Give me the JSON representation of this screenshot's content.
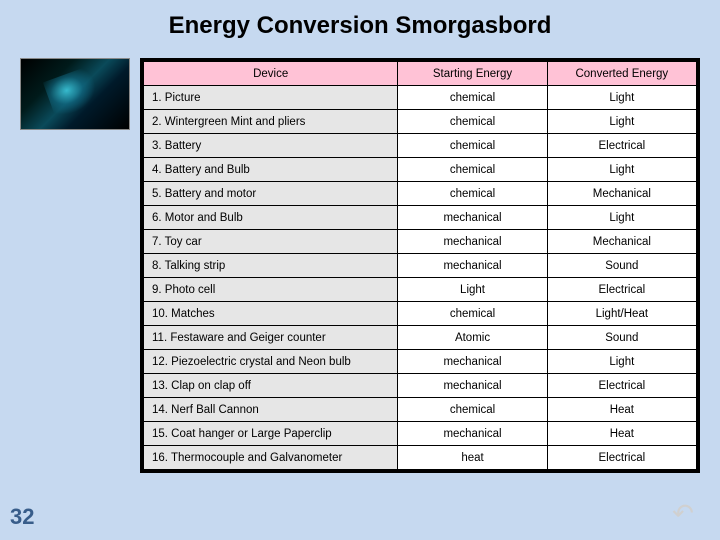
{
  "title": "Energy Conversion Smorgasbord",
  "pageNumber": "32",
  "headers": {
    "device": "Device",
    "starting": "Starting Energy",
    "converted": "Converted Energy"
  },
  "rows": [
    {
      "device": "1. Picture",
      "starting": "chemical",
      "converted": "Light"
    },
    {
      "device": "2. Wintergreen Mint and pliers",
      "starting": "chemical",
      "converted": "Light"
    },
    {
      "device": "3. Battery",
      "starting": "chemical",
      "converted": "Electrical"
    },
    {
      "device": "4. Battery and Bulb",
      "starting": "chemical",
      "converted": "Light"
    },
    {
      "device": "5. Battery and motor",
      "starting": "chemical",
      "converted": "Mechanical"
    },
    {
      "device": "6. Motor and Bulb",
      "starting": "mechanical",
      "converted": "Light"
    },
    {
      "device": "7. Toy car",
      "starting": "mechanical",
      "converted": "Mechanical"
    },
    {
      "device": "8. Talking strip",
      "starting": "mechanical",
      "converted": "Sound"
    },
    {
      "device": "9. Photo cell",
      "starting": "Light",
      "converted": "Electrical"
    },
    {
      "device": "10. Matches",
      "starting": "chemical",
      "converted": "Light/Heat"
    },
    {
      "device": "11. Festaware and Geiger counter",
      "starting": "Atomic",
      "converted": "Sound"
    },
    {
      "device": "12. Piezoelectric crystal and Neon bulb",
      "starting": "mechanical",
      "converted": "Light"
    },
    {
      "device": "13. Clap on clap off",
      "starting": "mechanical",
      "converted": "Electrical"
    },
    {
      "device": "14. Nerf Ball Cannon",
      "starting": "chemical",
      "converted": "Heat"
    },
    {
      "device": "15. Coat hanger or Large Paperclip",
      "starting": "mechanical",
      "converted": "Heat"
    },
    {
      "device": "16. Thermocouple and Galvanometer",
      "starting": "heat",
      "converted": "Electrical"
    }
  ]
}
